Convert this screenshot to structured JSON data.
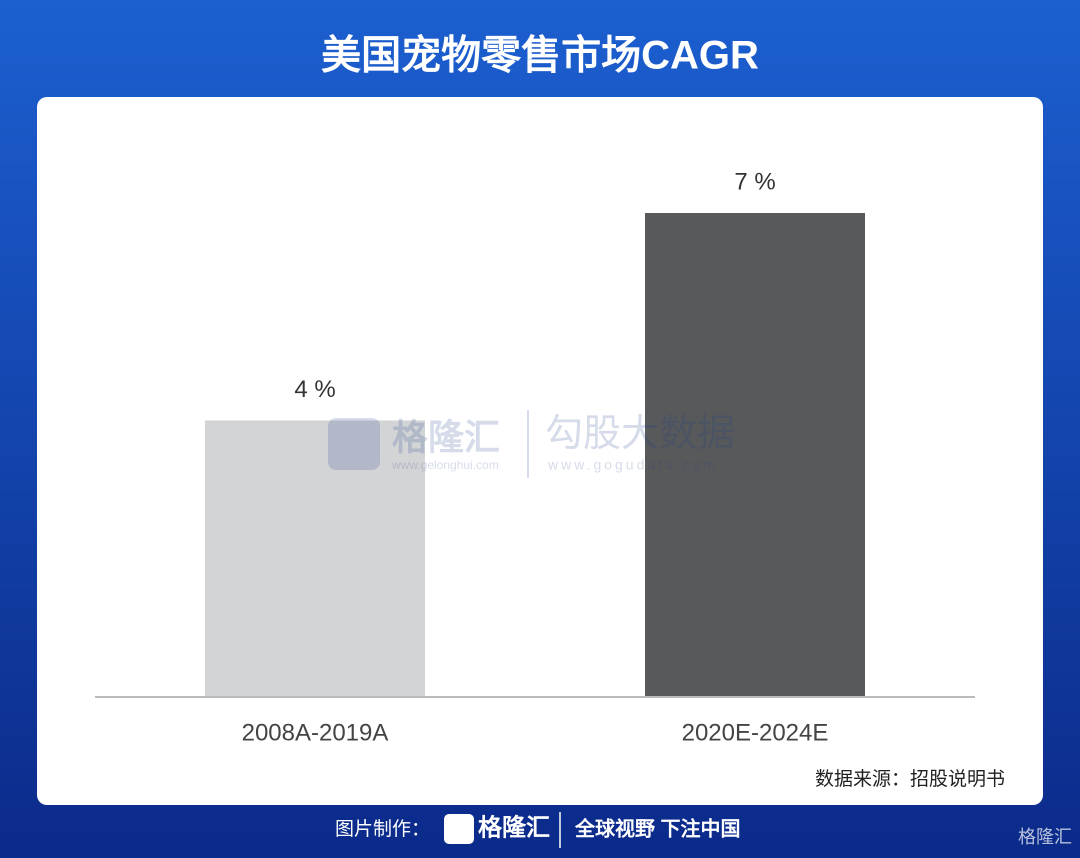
{
  "chart_data": {
    "type": "bar",
    "title": "美国宠物零售市场CAGR",
    "categories": [
      "2008A-2019A",
      "2020E-2024E"
    ],
    "values": [
      4,
      7
    ],
    "value_labels": [
      "4 %",
      "7 %"
    ],
    "colors": [
      "#d3d4d6",
      "#58595b"
    ],
    "ylim": [
      0,
      7
    ],
    "source": "数据来源：招股说明书"
  },
  "watermark": {
    "brand": "格隆汇",
    "brand_url": "www.gelonghui.com",
    "partner": "勾股大数据",
    "partner_url": "www.gogudata.com"
  },
  "footer": {
    "made_by": "图片制作：",
    "brand": "格隆汇",
    "slogan": "全球视野 下注中国",
    "corner_brand": "格隆汇"
  }
}
